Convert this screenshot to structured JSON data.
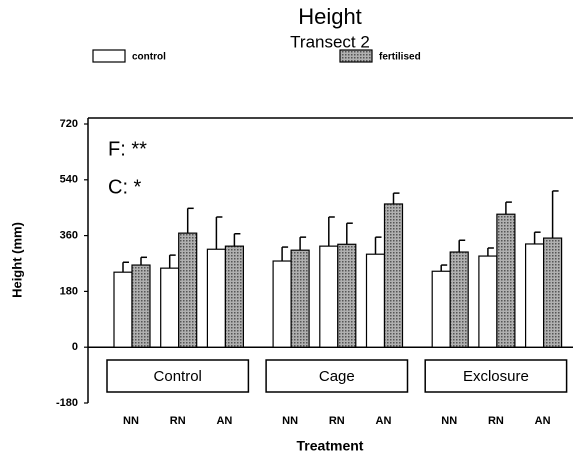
{
  "chart_data": {
    "type": "bar",
    "title": "Height",
    "subtitle": "Transect 2",
    "ylabel": "Height (mm)",
    "xlabel": "Treatment",
    "annotations": [
      "F: **",
      "C: *"
    ],
    "groups": [
      "Control",
      "Cage",
      "Exclosure"
    ],
    "categories": [
      "NN",
      "RN",
      "AN",
      "NN",
      "RN",
      "AN",
      "NN",
      "RN",
      "AN"
    ],
    "series": [
      {
        "name": "control",
        "color": "#ffffff",
        "values": [
          242,
          255,
          316,
          278,
          326,
          300,
          245,
          294,
          333
        ],
        "errors": [
          32,
          42,
          104,
          45,
          94,
          55,
          20,
          26,
          38
        ]
      },
      {
        "name": "fertilised",
        "color": "#b0b0b0",
        "pattern": true,
        "values": [
          265,
          368,
          326,
          313,
          332,
          462,
          307,
          429,
          352
        ],
        "errors": [
          25,
          80,
          40,
          42,
          68,
          35,
          38,
          39,
          152
        ]
      }
    ],
    "ylim": [
      -180,
      720
    ],
    "yticks": [
      -180,
      0,
      180,
      360,
      540,
      720
    ]
  }
}
